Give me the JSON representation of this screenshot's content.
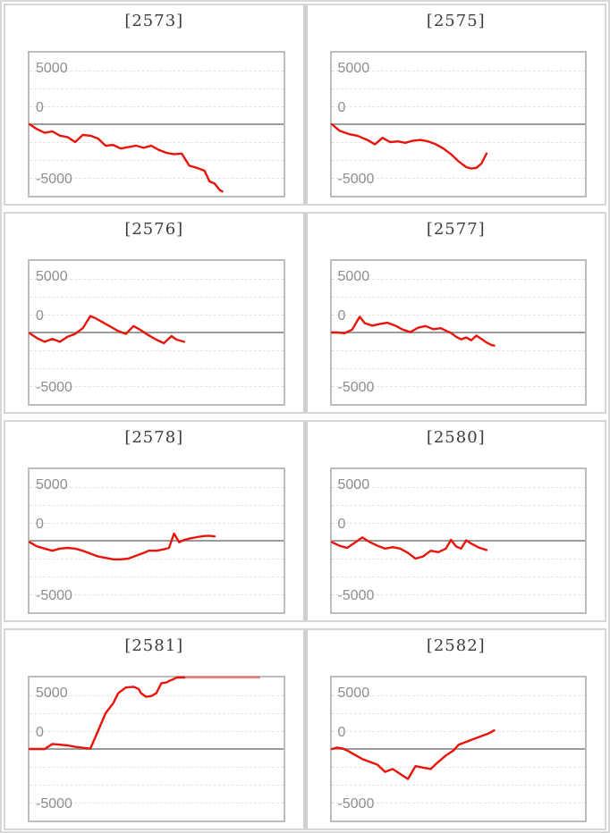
{
  "axis": {
    "tick_labels": [
      "5000",
      "0",
      "-5000"
    ]
  },
  "theme": {
    "series_color": "#e8140b",
    "zero_line_color": "#9b9b9b",
    "gridline_color": "#e4e4e4",
    "plot_border_color": "#bdbdbd",
    "panel_border_color": "#d6d6d6",
    "title_color": "#3c3c3c",
    "tick_label_color": "#8e8e8e",
    "background_color": "#ffffff"
  },
  "chart_data": [
    {
      "type": "line",
      "title": "[2573]",
      "ylim": [
        -5000,
        5000
      ],
      "yticks": [
        5000,
        0,
        -5000
      ],
      "grid": "dashed-horizontal",
      "points": [
        [
          0,
          0
        ],
        [
          3,
          -350
        ],
        [
          6,
          -600
        ],
        [
          9,
          -500
        ],
        [
          12,
          -800
        ],
        [
          15,
          -900
        ],
        [
          18,
          -1250
        ],
        [
          21,
          -750
        ],
        [
          24,
          -800
        ],
        [
          27,
          -1000
        ],
        [
          30,
          -1500
        ],
        [
          33,
          -1450
        ],
        [
          36,
          -1700
        ],
        [
          39,
          -1600
        ],
        [
          42,
          -1500
        ],
        [
          45,
          -1650
        ],
        [
          48,
          -1500
        ],
        [
          51,
          -1800
        ],
        [
          54,
          -2000
        ],
        [
          57,
          -2100
        ],
        [
          60,
          -2050
        ],
        [
          63,
          -2900
        ],
        [
          66,
          -3050
        ],
        [
          69,
          -3250
        ],
        [
          71,
          -4000
        ],
        [
          73,
          -4150
        ],
        [
          75,
          -4600
        ],
        [
          76,
          -4700
        ]
      ]
    },
    {
      "type": "line",
      "title": "[2575]",
      "ylim": [
        -5000,
        5000
      ],
      "yticks": [
        5000,
        0,
        -5000
      ],
      "grid": "dashed-horizontal",
      "points": [
        [
          0,
          0
        ],
        [
          3,
          -450
        ],
        [
          7,
          -700
        ],
        [
          10,
          -800
        ],
        [
          14,
          -1100
        ],
        [
          17,
          -1400
        ],
        [
          20,
          -950
        ],
        [
          23,
          -1250
        ],
        [
          26,
          -1200
        ],
        [
          29,
          -1300
        ],
        [
          32,
          -1150
        ],
        [
          35,
          -1100
        ],
        [
          38,
          -1200
        ],
        [
          41,
          -1400
        ],
        [
          44,
          -1700
        ],
        [
          47,
          -2100
        ],
        [
          50,
          -2600
        ],
        [
          53,
          -3000
        ],
        [
          55,
          -3100
        ],
        [
          57,
          -3050
        ],
        [
          59,
          -2750
        ],
        [
          61,
          -2050
        ]
      ]
    },
    {
      "type": "line",
      "title": "[2576]",
      "ylim": [
        -5000,
        5000
      ],
      "yticks": [
        5000,
        0,
        -5000
      ],
      "grid": "dashed-horizontal",
      "points": [
        [
          0,
          -50
        ],
        [
          3,
          -400
        ],
        [
          6,
          -650
        ],
        [
          9,
          -450
        ],
        [
          12,
          -650
        ],
        [
          15,
          -300
        ],
        [
          18,
          -100
        ],
        [
          21,
          300
        ],
        [
          24,
          1150
        ],
        [
          26,
          1000
        ],
        [
          29,
          700
        ],
        [
          32,
          400
        ],
        [
          35,
          100
        ],
        [
          38,
          -100
        ],
        [
          41,
          450
        ],
        [
          44,
          150
        ],
        [
          47,
          -200
        ],
        [
          50,
          -500
        ],
        [
          53,
          -750
        ],
        [
          56,
          -250
        ],
        [
          58,
          -500
        ],
        [
          61,
          -650
        ]
      ]
    },
    {
      "type": "line",
      "title": "[2577]",
      "ylim": [
        -5000,
        5000
      ],
      "yticks": [
        5000,
        0,
        -5000
      ],
      "grid": "dashed-horizontal",
      "points": [
        [
          0,
          0
        ],
        [
          2,
          0
        ],
        [
          5,
          -50
        ],
        [
          8,
          200
        ],
        [
          11,
          1100
        ],
        [
          13,
          650
        ],
        [
          16,
          480
        ],
        [
          19,
          600
        ],
        [
          22,
          680
        ],
        [
          25,
          480
        ],
        [
          28,
          200
        ],
        [
          31,
          30
        ],
        [
          34,
          330
        ],
        [
          37,
          450
        ],
        [
          40,
          230
        ],
        [
          43,
          300
        ],
        [
          45,
          120
        ],
        [
          47,
          -30
        ],
        [
          49,
          -300
        ],
        [
          51,
          -480
        ],
        [
          53,
          -350
        ],
        [
          55,
          -550
        ],
        [
          57,
          -220
        ],
        [
          59,
          -450
        ],
        [
          61,
          -700
        ],
        [
          63,
          -880
        ],
        [
          64,
          -920
        ]
      ]
    },
    {
      "type": "line",
      "title": "[2578]",
      "ylim": [
        -5000,
        5000
      ],
      "yticks": [
        5000,
        0,
        -5000
      ],
      "grid": "dashed-horizontal",
      "points": [
        [
          0,
          -100
        ],
        [
          3,
          -400
        ],
        [
          6,
          -550
        ],
        [
          9,
          -700
        ],
        [
          12,
          -550
        ],
        [
          15,
          -500
        ],
        [
          18,
          -550
        ],
        [
          21,
          -700
        ],
        [
          24,
          -900
        ],
        [
          27,
          -1100
        ],
        [
          30,
          -1200
        ],
        [
          33,
          -1300
        ],
        [
          36,
          -1300
        ],
        [
          39,
          -1250
        ],
        [
          42,
          -1050
        ],
        [
          45,
          -850
        ],
        [
          47,
          -700
        ],
        [
          50,
          -700
        ],
        [
          53,
          -600
        ],
        [
          55,
          -500
        ],
        [
          57,
          500
        ],
        [
          59,
          -100
        ],
        [
          61,
          50
        ],
        [
          63,
          150
        ],
        [
          66,
          250
        ],
        [
          69,
          330
        ],
        [
          71,
          350
        ],
        [
          73,
          300
        ]
      ]
    },
    {
      "type": "line",
      "title": "[2580]",
      "ylim": [
        -5000,
        5000
      ],
      "yticks": [
        5000,
        0,
        -5000
      ],
      "grid": "dashed-horizontal",
      "points": [
        [
          0,
          -100
        ],
        [
          3,
          -350
        ],
        [
          6,
          -500
        ],
        [
          9,
          -150
        ],
        [
          12,
          230
        ],
        [
          15,
          -100
        ],
        [
          18,
          -350
        ],
        [
          21,
          -550
        ],
        [
          24,
          -450
        ],
        [
          27,
          -550
        ],
        [
          30,
          -850
        ],
        [
          33,
          -1250
        ],
        [
          36,
          -1100
        ],
        [
          39,
          -700
        ],
        [
          42,
          -800
        ],
        [
          45,
          -550
        ],
        [
          47,
          60
        ],
        [
          49,
          -400
        ],
        [
          51,
          -550
        ],
        [
          53,
          30
        ],
        [
          55,
          -200
        ],
        [
          58,
          -480
        ],
        [
          61,
          -650
        ]
      ]
    },
    {
      "type": "line",
      "title": "[2581]",
      "ylim": [
        -5000,
        5000
      ],
      "yticks": [
        5000,
        0,
        -5000
      ],
      "grid": "dashed-horizontal",
      "points": [
        [
          0,
          0
        ],
        [
          3,
          0
        ],
        [
          6,
          0
        ],
        [
          9,
          350
        ],
        [
          12,
          300
        ],
        [
          15,
          250
        ],
        [
          18,
          150
        ],
        [
          21,
          80
        ],
        [
          24,
          30
        ],
        [
          27,
          1250
        ],
        [
          30,
          2500
        ],
        [
          33,
          3200
        ],
        [
          35,
          3900
        ],
        [
          38,
          4300
        ],
        [
          41,
          4350
        ],
        [
          43,
          4200
        ],
        [
          44,
          3900
        ],
        [
          46,
          3650
        ],
        [
          48,
          3700
        ],
        [
          50,
          3900
        ],
        [
          52,
          4600
        ],
        [
          54,
          4650
        ],
        [
          55,
          4750
        ],
        [
          57,
          4900
        ],
        [
          58,
          5000
        ],
        [
          61,
          5000
        ]
      ],
      "clipped_overflow": {
        "x_from_pct": 61,
        "x_to_pct": 91,
        "value": 5000,
        "opacity": 0.45
      }
    },
    {
      "type": "line",
      "title": "[2582]",
      "ylim": [
        -5000,
        5000
      ],
      "yticks": [
        5000,
        0,
        -5000
      ],
      "grid": "dashed-horizontal",
      "points": [
        [
          0,
          0
        ],
        [
          2,
          100
        ],
        [
          4,
          50
        ],
        [
          6,
          -100
        ],
        [
          9,
          -400
        ],
        [
          12,
          -700
        ],
        [
          15,
          -900
        ],
        [
          18,
          -1100
        ],
        [
          21,
          -1600
        ],
        [
          24,
          -1400
        ],
        [
          27,
          -1750
        ],
        [
          30,
          -2100
        ],
        [
          33,
          -1200
        ],
        [
          36,
          -1300
        ],
        [
          39,
          -1400
        ],
        [
          42,
          -900
        ],
        [
          45,
          -450
        ],
        [
          48,
          -100
        ],
        [
          50,
          300
        ],
        [
          53,
          500
        ],
        [
          56,
          700
        ],
        [
          59,
          900
        ],
        [
          62,
          1100
        ],
        [
          64,
          1300
        ]
      ]
    }
  ]
}
